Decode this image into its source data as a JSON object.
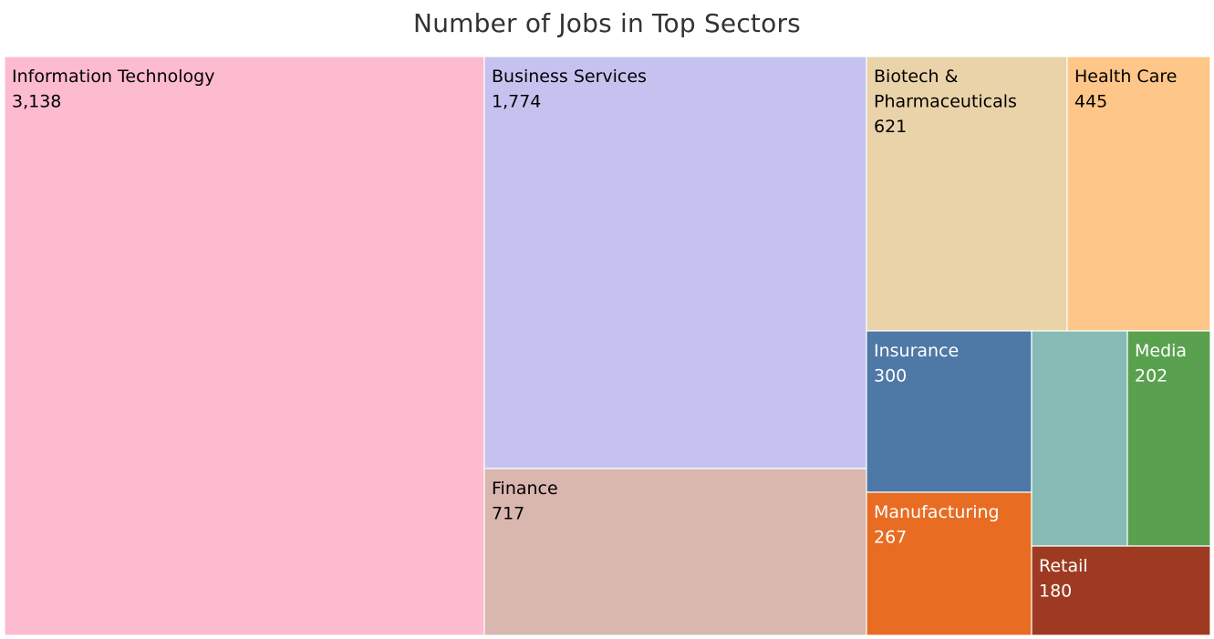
{
  "chart_data": {
    "type": "treemap",
    "title": "Number of Jobs in Top Sectors",
    "items": [
      {
        "name": "Information Technology",
        "value": 3138,
        "label": "Information Technology",
        "value_label": "3,138",
        "color": "#FDBBD0",
        "text_color": "#000000"
      },
      {
        "name": "Business Services",
        "value": 1774,
        "label": "Business Services",
        "value_label": "1,774",
        "color": "#C6C2F0",
        "text_color": "#000000"
      },
      {
        "name": "Finance",
        "value": 717,
        "label": "Finance",
        "value_label": "717",
        "color": "#D9B6AE",
        "text_color": "#000000"
      },
      {
        "name": "Biotech & Pharmaceuticals",
        "value": 621,
        "label_lines": [
          "Biotech &",
          "Pharmaceuticals"
        ],
        "value_label": "621",
        "color": "#EAD3A9",
        "text_color": "#000000"
      },
      {
        "name": "Health Care",
        "value": 445,
        "label": "Health Care",
        "value_label": "445",
        "color": "#FEC688",
        "text_color": "#000000"
      },
      {
        "name": "Insurance",
        "value": 300,
        "label": "Insurance",
        "value_label": "300",
        "color": "#4E78A6",
        "text_color": "#FFFFFF"
      },
      {
        "name": "Manufacturing",
        "value": 267,
        "label": "Manufacturing",
        "value_label": "267",
        "color": "#E86C22",
        "text_color": "#FFFFFF"
      },
      {
        "name": "Unlabeled sector",
        "value": 220,
        "color": "#86BCB5",
        "text_color": "#FFFFFF"
      },
      {
        "name": "Media",
        "value": 202,
        "label": "Media",
        "value_label": "202",
        "color": "#59A14F",
        "text_color": "#FFFFFF"
      },
      {
        "name": "Retail",
        "value": 180,
        "label": "Retail",
        "value_label": "180",
        "color": "#9E3A22",
        "text_color": "#FFFFFF"
      }
    ]
  }
}
